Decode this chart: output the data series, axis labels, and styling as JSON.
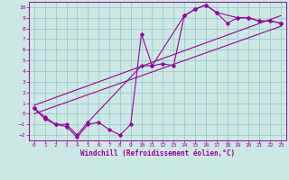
{
  "xlabel": "Windchill (Refroidissement éolien,°C)",
  "bg_color": "#cce8e4",
  "line_color": "#990099",
  "grid_color": "#99cccc",
  "xlim": [
    -0.5,
    23.5
  ],
  "ylim": [
    -2.5,
    10.5
  ],
  "xticks": [
    0,
    1,
    2,
    3,
    4,
    5,
    6,
    7,
    8,
    9,
    10,
    11,
    12,
    13,
    14,
    15,
    16,
    17,
    18,
    19,
    20,
    21,
    22,
    23
  ],
  "yticks": [
    -2,
    -1,
    0,
    1,
    2,
    3,
    4,
    5,
    6,
    7,
    8,
    9,
    10
  ],
  "curve1_x": [
    0,
    1,
    2,
    3,
    4,
    5,
    6,
    7,
    8,
    9,
    10,
    11,
    12,
    13,
    14,
    15,
    16,
    17,
    18,
    19,
    20,
    21,
    22,
    23
  ],
  "curve1_y": [
    0.5,
    -0.5,
    -1.0,
    -1.2,
    -2.2,
    -1.0,
    -0.8,
    -1.5,
    -2.0,
    -1.0,
    7.5,
    4.5,
    4.7,
    4.5,
    9.2,
    9.8,
    10.2,
    9.5,
    8.5,
    9.0,
    9.0,
    8.7,
    8.7,
    8.5
  ],
  "curve2_x": [
    0,
    1,
    2,
    3,
    4,
    5,
    10,
    11,
    14,
    15,
    16,
    17,
    19,
    20,
    21,
    22,
    23
  ],
  "curve2_y": [
    0.5,
    -0.3,
    -1.0,
    -1.0,
    -2.0,
    -0.8,
    4.5,
    4.5,
    9.2,
    9.8,
    10.2,
    9.5,
    9.0,
    9.0,
    8.7,
    8.7,
    8.5
  ],
  "line1_x": [
    0,
    23
  ],
  "line1_y": [
    0.0,
    8.2
  ],
  "line2_x": [
    0,
    23
  ],
  "line2_y": [
    0.8,
    9.2
  ]
}
